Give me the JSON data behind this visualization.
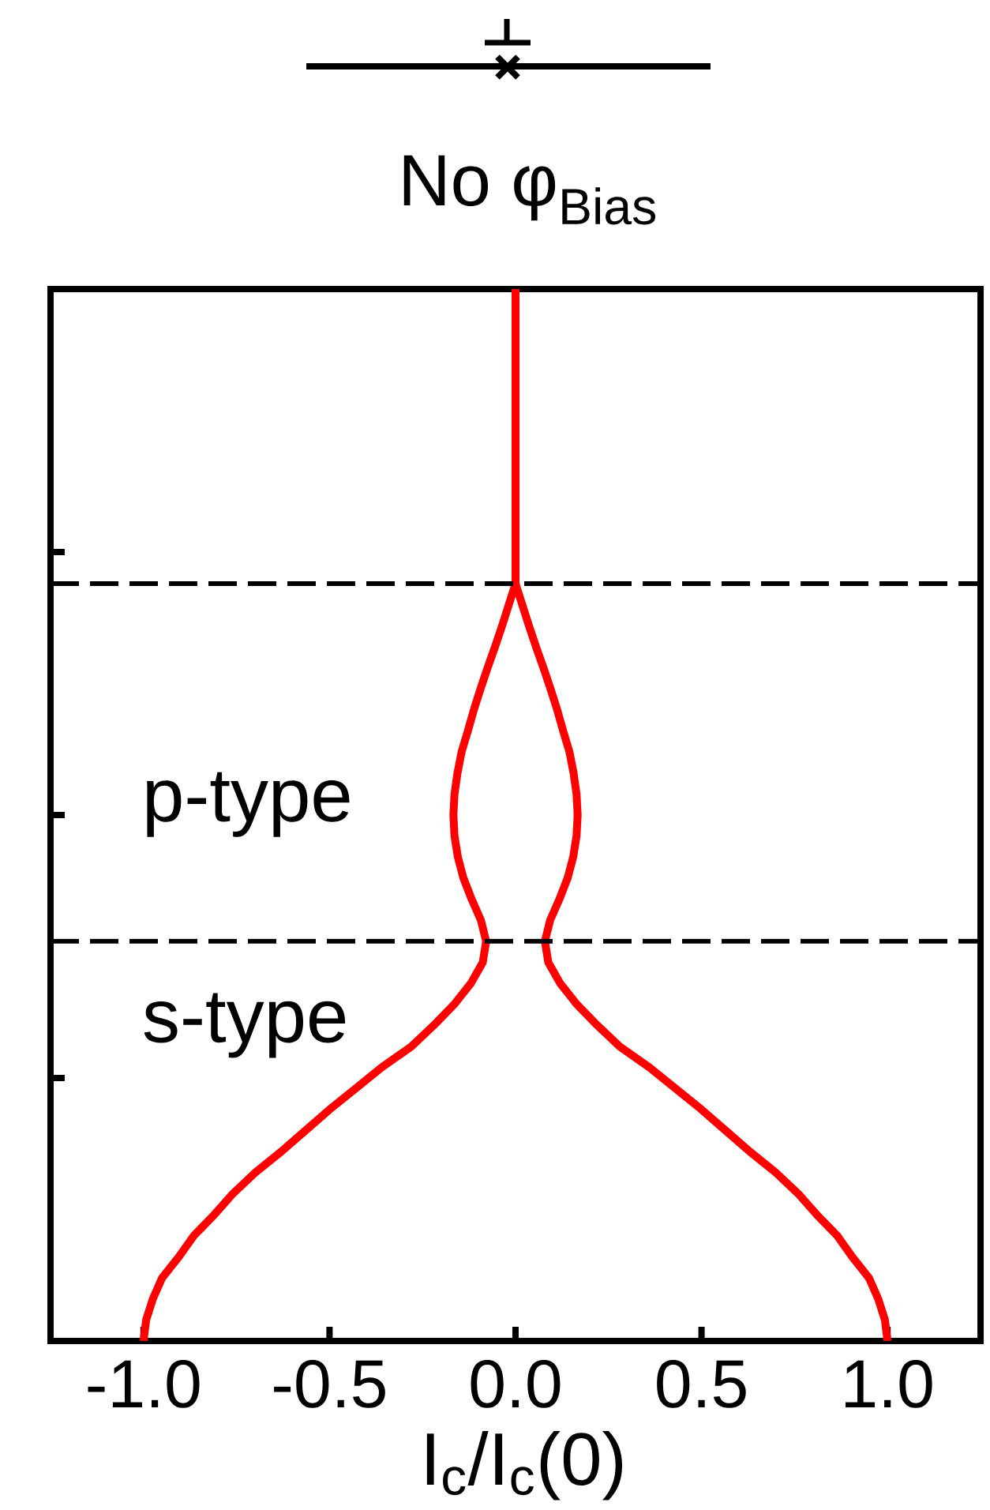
{
  "chart_data": {
    "type": "line",
    "orientation": "horizontal",
    "title": "No φ$_{Bias}$",
    "xlabel": "I$_{c}$/I$_{c}$(0)",
    "tick_labels": "x",
    "categories": [
      null,
      null,
      null,
      null,
      null,
      null,
      null,
      null,
      null,
      null,
      null,
      null,
      null,
      null,
      null,
      null,
      null,
      null,
      null,
      null,
      null,
      null,
      null,
      null,
      null,
      null,
      null,
      null,
      null,
      null,
      null,
      null,
      null,
      null,
      null,
      null,
      null,
      null,
      null,
      null,
      null,
      null,
      null,
      null,
      null,
      null,
      null,
      null,
      null,
      null,
      null
    ],
    "xlim": [
      -1.25,
      1.25
    ],
    "xticks": [
      {
        "value": -1,
        "label": "-1.0"
      },
      {
        "value": -0.5,
        "label": "-0.5"
      },
      {
        "value": 0,
        "label": "0.0"
      },
      {
        "value": 0.5,
        "label": "0.5"
      },
      {
        "value": 1,
        "label": "1.0"
      }
    ],
    "series": [
      {
        "color": "#ff0000",
        "values": [
          0,
          0,
          0,
          0,
          0,
          0,
          0,
          0,
          0,
          0,
          0,
          0,
          0,
          0,
          0,
          -0.018,
          -0.036,
          -0.055,
          -0.075,
          -0.094,
          -0.112,
          -0.128,
          -0.145,
          -0.156,
          -0.164,
          -0.167,
          -0.164,
          -0.155,
          -0.14,
          -0.118,
          -0.093,
          -0.079,
          -0.088,
          -0.12,
          -0.165,
          -0.22,
          -0.28,
          -0.36,
          -0.43,
          -0.5,
          -0.565,
          -0.63,
          -0.7,
          -0.76,
          -0.81,
          -0.865,
          -0.905,
          -0.95,
          -0.975,
          -0.993,
          -1.0
        ]
      },
      {
        "color": "#ff0000",
        "values": [
          null,
          null,
          null,
          null,
          null,
          null,
          null,
          null,
          null,
          null,
          null,
          null,
          null,
          null,
          0,
          0.018,
          0.036,
          0.055,
          0.075,
          0.094,
          0.112,
          0.128,
          0.145,
          0.156,
          0.164,
          0.167,
          0.164,
          0.155,
          0.14,
          0.118,
          0.093,
          0.079,
          0.088,
          0.12,
          0.165,
          0.22,
          0.28,
          0.36,
          0.43,
          0.5,
          0.565,
          0.63,
          0.7,
          0.76,
          0.81,
          0.865,
          0.905,
          0.95,
          0.975,
          0.993,
          1.0
        ]
      }
    ],
    "annotations": [
      "p-type",
      "s-type"
    ]
  }
}
